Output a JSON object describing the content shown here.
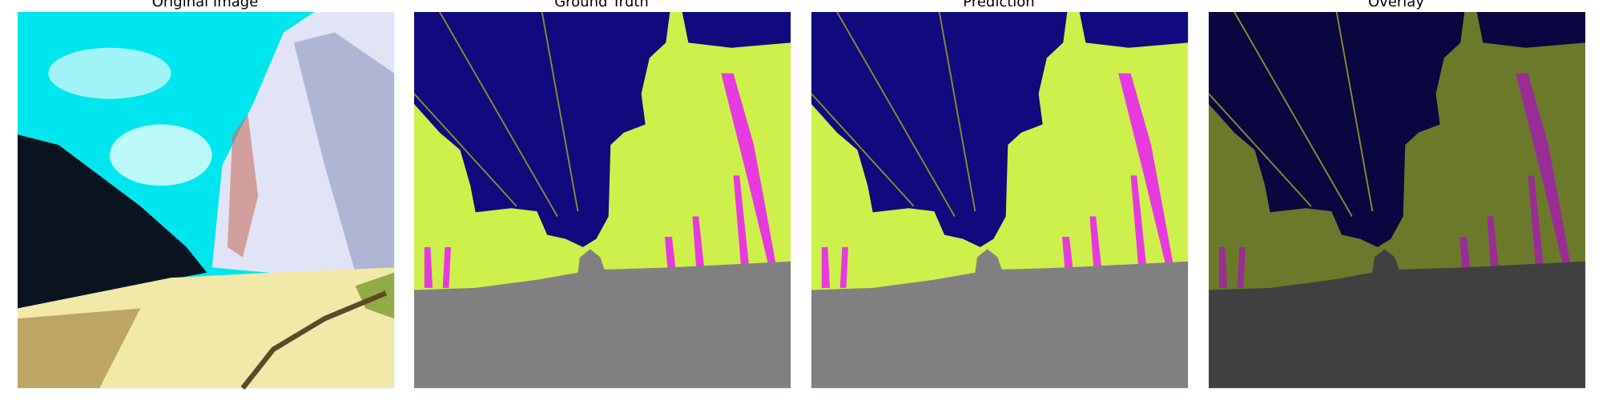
{
  "panels": [
    {
      "title": "Original Image"
    },
    {
      "title": "Ground Truth"
    },
    {
      "title": "Prediction"
    },
    {
      "title": "Overlay"
    }
  ]
}
